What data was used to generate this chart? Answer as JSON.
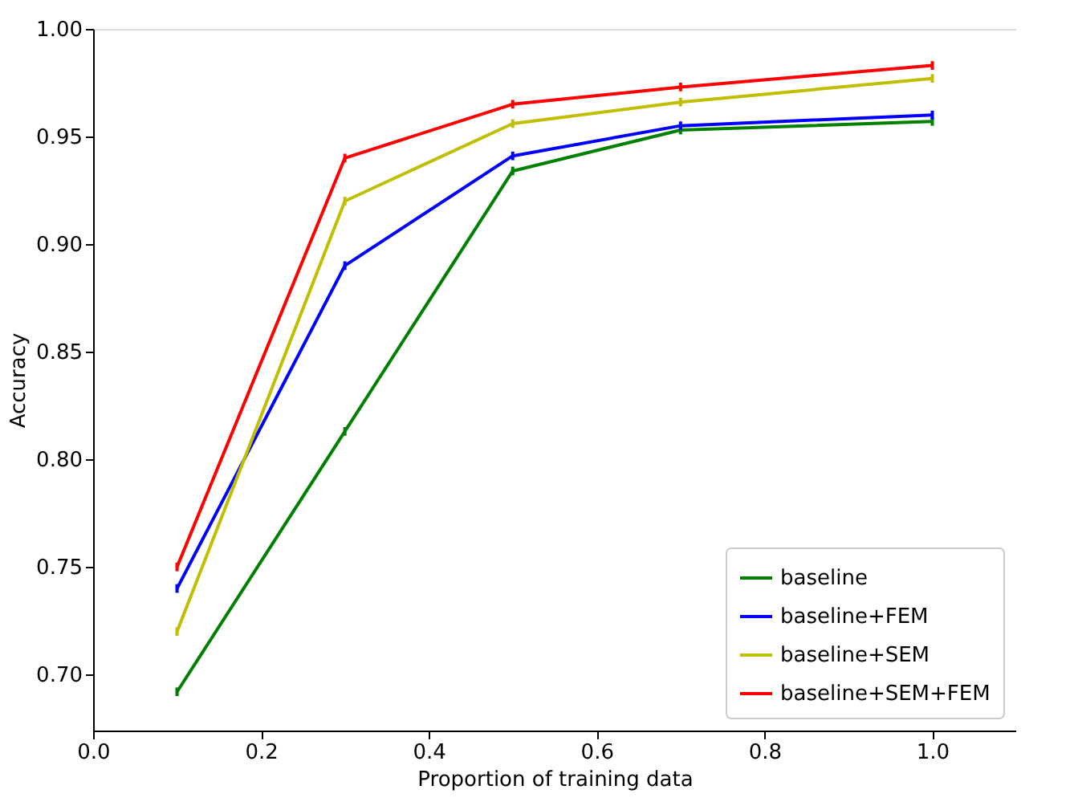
{
  "chart_data": {
    "type": "line",
    "xlabel": "Proportion of training data",
    "ylabel": "Accuracy",
    "x": [
      0.1,
      0.3,
      0.5,
      0.7,
      1.0
    ],
    "series": [
      {
        "name": "baseline",
        "color": "#008000",
        "values": [
          0.692,
          0.813,
          0.934,
          0.953,
          0.957
        ],
        "errors": [
          0.002,
          0.002,
          0.002,
          0.002,
          0.002
        ]
      },
      {
        "name": "baseline+FEM",
        "color": "#0000ff",
        "values": [
          0.74,
          0.89,
          0.941,
          0.955,
          0.96
        ],
        "errors": [
          0.002,
          0.002,
          0.002,
          0.002,
          0.002
        ]
      },
      {
        "name": "baseline+SEM",
        "color": "#bfbf00",
        "values": [
          0.72,
          0.92,
          0.956,
          0.966,
          0.977
        ],
        "errors": [
          0.002,
          0.002,
          0.002,
          0.002,
          0.002
        ]
      },
      {
        "name": "baseline+SEM+FEM",
        "color": "#ff0000",
        "values": [
          0.75,
          0.94,
          0.965,
          0.973,
          0.983
        ],
        "errors": [
          0.002,
          0.002,
          0.002,
          0.002,
          0.002
        ]
      }
    ],
    "xlim": [
      0,
      1.1
    ],
    "ylim": [
      0.674,
      1.0
    ],
    "xticks": [
      {
        "value": 0,
        "label": "0.0"
      },
      0.2,
      0.4,
      0.6,
      0.8,
      {
        "value": 1,
        "label": "1.0"
      }
    ],
    "yticks": [
      {
        "value": 0.7,
        "label": "0.70"
      },
      0.75,
      {
        "value": 0.8,
        "label": "0.80"
      },
      0.85,
      {
        "value": 0.9,
        "label": "0.90"
      },
      0.95,
      {
        "value": 1,
        "label": "1.00"
      }
    ],
    "grid": false,
    "legend": "bottom right",
    "line_style": "solid",
    "marker": "none"
  }
}
